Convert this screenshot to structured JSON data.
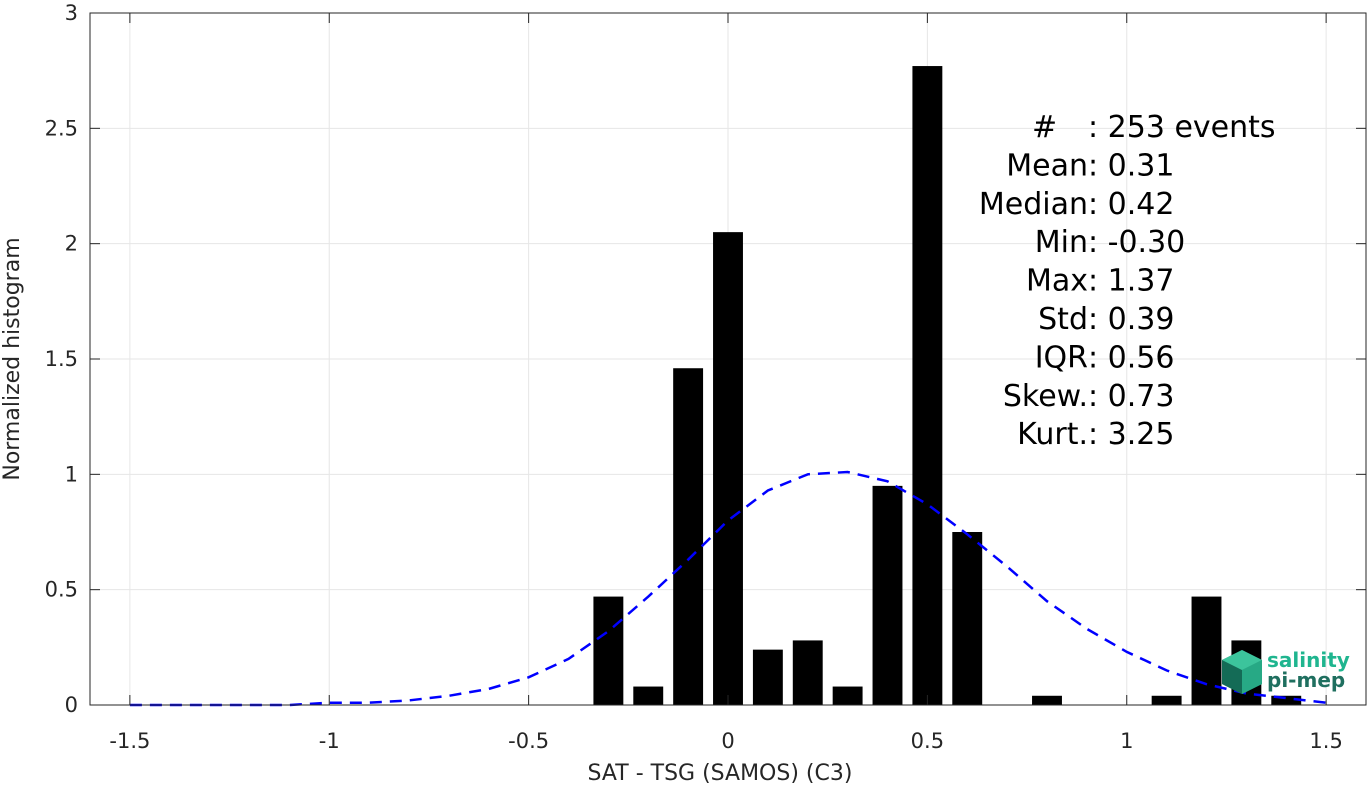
{
  "chart_data": {
    "type": "bar",
    "xlabel": "SAT - TSG (SAMOS) (C3)",
    "ylabel": "Normalized histogram",
    "xlim": [
      -1.6,
      1.6
    ],
    "ylim": [
      0,
      3
    ],
    "xticks": [
      -1.5,
      -1,
      -0.5,
      0,
      0.5,
      1,
      1.5
    ],
    "xtick_labels": [
      "-1.5",
      "-1",
      "-0.5",
      "0",
      "0.5",
      "1",
      "1.5"
    ],
    "yticks": [
      0,
      0.5,
      1,
      1.5,
      2,
      2.5,
      3
    ],
    "ytick_labels": [
      "0",
      "0.5",
      "1",
      "1.5",
      "2",
      "2.5",
      "3"
    ],
    "grid": true,
    "bin_width": 0.1,
    "bar_color": "#000000",
    "series": [
      {
        "type": "bar",
        "x": [
          -0.3,
          -0.2,
          -0.1,
          0.0,
          0.1,
          0.2,
          0.3,
          0.4,
          0.5,
          0.6,
          0.8,
          1.1,
          1.2,
          1.3,
          1.4
        ],
        "values": [
          0.47,
          0.08,
          1.46,
          2.05,
          0.24,
          0.28,
          0.08,
          0.95,
          2.77,
          0.75,
          0.04,
          0.04,
          0.47,
          0.28,
          0.04
        ]
      },
      {
        "type": "line",
        "style": "dashed",
        "color": "#0000ff",
        "x": [
          -1.5,
          -1.4,
          -1.3,
          -1.2,
          -1.1,
          -1.0,
          -0.9,
          -0.8,
          -0.7,
          -0.6,
          -0.5,
          -0.4,
          -0.3,
          -0.2,
          -0.1,
          0.0,
          0.1,
          0.2,
          0.3,
          0.4,
          0.5,
          0.6,
          0.7,
          0.8,
          0.9,
          1.0,
          1.1,
          1.2,
          1.3,
          1.4,
          1.5
        ],
        "values": [
          0.0,
          0.0,
          0.0,
          0.0,
          0.0,
          0.01,
          0.01,
          0.02,
          0.04,
          0.07,
          0.12,
          0.2,
          0.32,
          0.47,
          0.63,
          0.8,
          0.93,
          1.0,
          1.01,
          0.97,
          0.87,
          0.74,
          0.6,
          0.45,
          0.33,
          0.23,
          0.15,
          0.09,
          0.05,
          0.03,
          0.01
        ]
      }
    ]
  },
  "stats": [
    {
      "label": "#  ",
      "value": "253 events"
    },
    {
      "label": "Mean ",
      "value": "0.31"
    },
    {
      "label": "Median ",
      "value": "0.42"
    },
    {
      "label": "Min ",
      "value": "-0.30"
    },
    {
      "label": "Max ",
      "value": "1.37"
    },
    {
      "label": "Std ",
      "value": "0.39"
    },
    {
      "label": "IQR ",
      "value": "0.56"
    },
    {
      "label": "Skew. ",
      "value": "0.73"
    },
    {
      "label": "Kurt. ",
      "value": "3.25"
    }
  ],
  "logo": {
    "line1": "salinity",
    "line2": "pi-mep",
    "color1": "#1fb58f",
    "color2": "#1f6f5f"
  }
}
